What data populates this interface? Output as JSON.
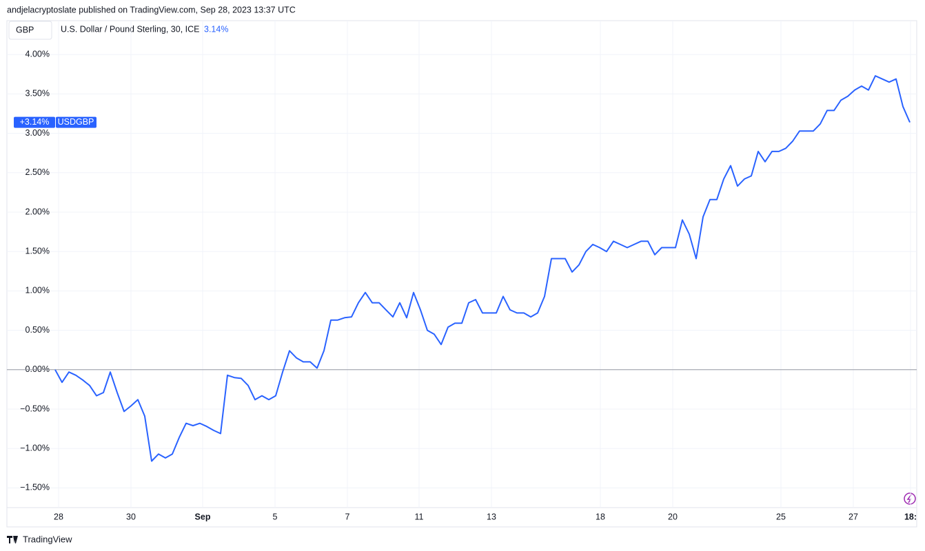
{
  "page": {
    "byline": "andjelacryptoslate published on TradingView.com, Sep 28, 2023 13:37 UTC",
    "currency_button": "GBP",
    "brand": "TradingView"
  },
  "chart_data": {
    "type": "line",
    "title": "U.S. Dollar / Pound Sterling, 30, ICE",
    "last_change_label": "3.14%",
    "price_tag": {
      "value_label": "+3.14%",
      "symbol": "USDGBP"
    },
    "color": "#2962ff",
    "baseline": 0,
    "grid": true,
    "ylim": [
      -1.75,
      4.43
    ],
    "yticks": [
      {
        "value": -1.5,
        "label": "−1.50%"
      },
      {
        "value": -1,
        "label": "−1.00%"
      },
      {
        "value": -0.5,
        "label": "−0.50%"
      },
      {
        "value": 0,
        "label": "0.00%"
      },
      {
        "value": 0.5,
        "label": "0.50%"
      },
      {
        "value": 1,
        "label": "1.00%"
      },
      {
        "value": 1.5,
        "label": "1.50%"
      },
      {
        "value": 2,
        "label": "2.00%"
      },
      {
        "value": 2.5,
        "label": "2.50%"
      },
      {
        "value": 3,
        "label": "3.00%"
      },
      {
        "value": 3.5,
        "label": "3.50%"
      },
      {
        "value": 4,
        "label": "4.00%"
      }
    ],
    "xlim": [
      -7,
      125
    ],
    "xticks": [
      {
        "value": 0.5,
        "label": "28"
      },
      {
        "value": 11,
        "label": "30"
      },
      {
        "value": 21.4,
        "label": "Sep"
      },
      {
        "value": 31.9,
        "label": "5"
      },
      {
        "value": 42.4,
        "label": "7"
      },
      {
        "value": 52.8,
        "label": "11"
      },
      {
        "value": 63.3,
        "label": "13"
      },
      {
        "value": 79.1,
        "label": "18"
      },
      {
        "value": 89.6,
        "label": "20"
      },
      {
        "value": 105.3,
        "label": "25"
      },
      {
        "value": 115.8,
        "label": "27"
      },
      {
        "value": 124.1,
        "label": "18:"
      }
    ],
    "values": [
      0.0,
      -0.16,
      -0.03,
      -0.07,
      -0.13,
      -0.2,
      -0.33,
      -0.29,
      -0.03,
      -0.29,
      -0.53,
      -0.46,
      -0.38,
      -0.59,
      -1.16,
      -1.07,
      -1.12,
      -1.07,
      -0.86,
      -0.68,
      -0.71,
      -0.68,
      -0.72,
      -0.77,
      -0.81,
      -0.07,
      -0.1,
      -0.11,
      -0.2,
      -0.38,
      -0.33,
      -0.38,
      -0.33,
      -0.03,
      0.24,
      0.15,
      0.1,
      0.1,
      0.02,
      0.24,
      0.63,
      0.63,
      0.66,
      0.67,
      0.85,
      0.98,
      0.85,
      0.85,
      0.76,
      0.67,
      0.85,
      0.66,
      0.98,
      0.76,
      0.5,
      0.45,
      0.32,
      0.54,
      0.59,
      0.59,
      0.85,
      0.89,
      0.72,
      0.72,
      0.72,
      0.93,
      0.76,
      0.72,
      0.72,
      0.67,
      0.72,
      0.93,
      1.41,
      1.41,
      1.41,
      1.24,
      1.33,
      1.5,
      1.59,
      1.55,
      1.5,
      1.63,
      1.59,
      1.55,
      1.59,
      1.63,
      1.63,
      1.46,
      1.55,
      1.55,
      1.55,
      1.9,
      1.72,
      1.41,
      1.94,
      2.16,
      2.16,
      2.42,
      2.59,
      2.33,
      2.42,
      2.46,
      2.77,
      2.64,
      2.77,
      2.77,
      2.81,
      2.9,
      3.03,
      3.03,
      3.03,
      3.12,
      3.29,
      3.29,
      3.42,
      3.47,
      3.55,
      3.6,
      3.55,
      3.73,
      3.69,
      3.65,
      3.69,
      3.34,
      3.14
    ]
  }
}
